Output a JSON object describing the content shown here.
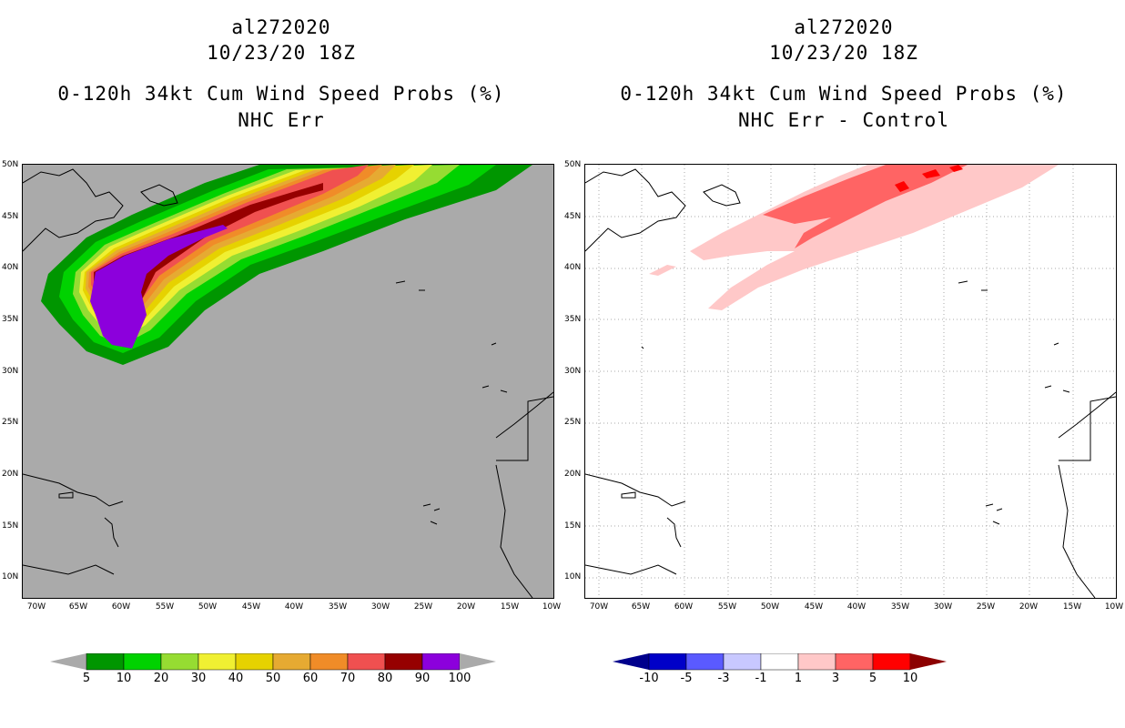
{
  "panels": [
    {
      "storm_id": "al272020",
      "datetime": "10/23/20 18Z",
      "title": "0-120h 34kt Cum Wind Speed Probs (%)",
      "subtitle": "NHC Err",
      "colorbar": {
        "labels": [
          "5",
          "10",
          "20",
          "30",
          "40",
          "50",
          "60",
          "70",
          "80",
          "90",
          "100"
        ],
        "colors": [
          "#009600",
          "#00d200",
          "#96dc32",
          "#f0f032",
          "#e6d200",
          "#e6aa32",
          "#f08c28",
          "#f05050",
          "#960000",
          "#8c00dc"
        ],
        "arrow_color": "#aaaaaa"
      }
    },
    {
      "storm_id": "al272020",
      "datetime": "10/23/20 18Z",
      "title": "0-120h 34kt Cum Wind Speed Probs (%)",
      "subtitle": "NHC Err - Control",
      "colorbar": {
        "labels": [
          "-10",
          "-5",
          "-3",
          "-1",
          "1",
          "3",
          "5",
          "10"
        ],
        "colors": [
          "#0000c8",
          "#5a5aff",
          "#c8c8ff",
          "#ffffff",
          "#ffc8c8",
          "#ff6464",
          "#ff0000"
        ],
        "low_arrow_color": "#00008c",
        "high_arrow_color": "#8c0000"
      }
    }
  ],
  "lat_labels": [
    "50N",
    "45N",
    "40N",
    "35N",
    "30N",
    "25N",
    "20N",
    "15N",
    "10N"
  ],
  "lon_labels": [
    "70W",
    "65W",
    "60W",
    "55W",
    "50W",
    "45W",
    "40W",
    "35W",
    "30W",
    "25W",
    "20W",
    "15W",
    "10W"
  ]
}
